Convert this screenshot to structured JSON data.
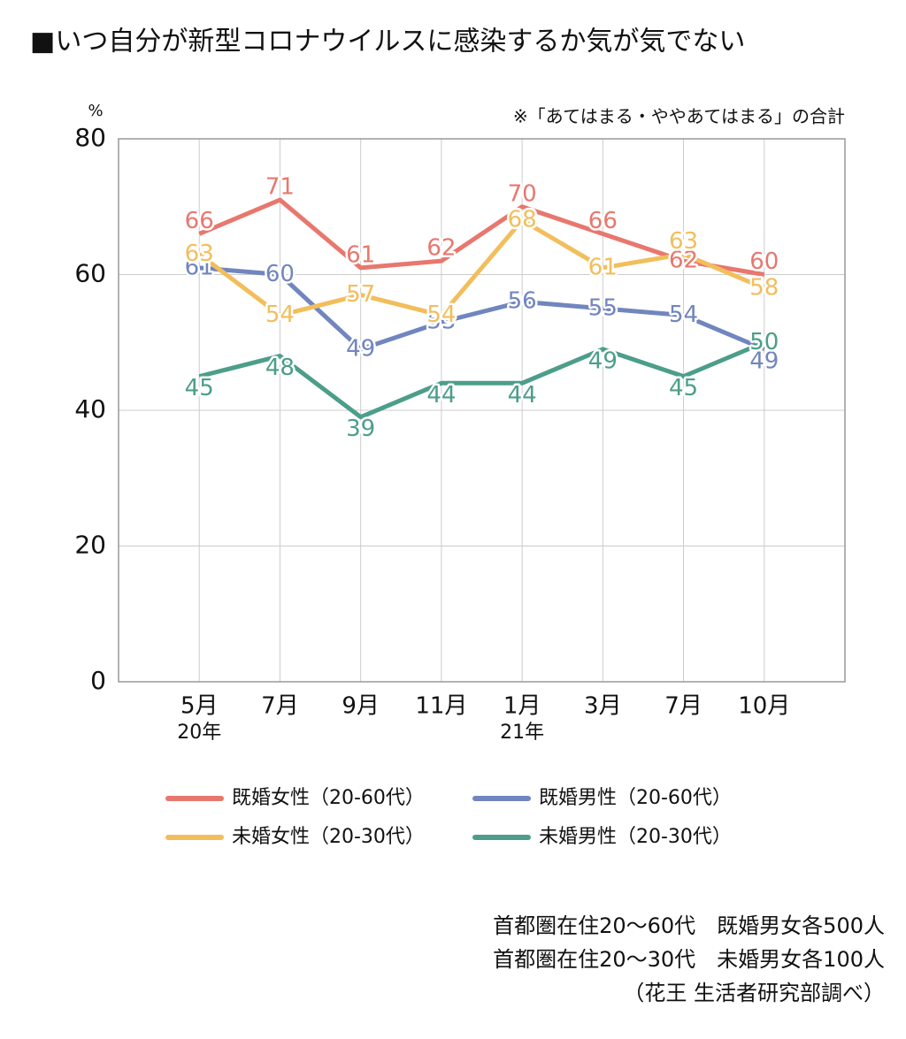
{
  "chart_data": {
    "type": "line",
    "title": "■いつ自分が新型コロナウイルスに感染するか気が気でない",
    "y_unit": "%",
    "note": "※「あてはまる・ややあてはまる」の合計",
    "categories": [
      "5月",
      "7月",
      "9月",
      "11月",
      "1月",
      "3月",
      "7月",
      "10月"
    ],
    "x_sublabels": [
      "20年",
      null,
      null,
      null,
      "21年",
      null,
      null,
      null
    ],
    "series": [
      {
        "name": "既婚女性（20-60代）",
        "color": "#e8776e",
        "values": [
          66,
          71,
          61,
          62,
          70,
          66,
          62,
          60
        ]
      },
      {
        "name": "既婚男性（20-60代）",
        "color": "#7186bf",
        "values": [
          61,
          60,
          49,
          53,
          56,
          55,
          54,
          49
        ]
      },
      {
        "name": "未婚女性（20-30代）",
        "color": "#f2be5c",
        "values": [
          63,
          54,
          57,
          54,
          68,
          61,
          63,
          58
        ]
      },
      {
        "name": "未婚男性（20-30代）",
        "color": "#4c9e8a",
        "values": [
          45,
          48,
          39,
          44,
          44,
          49,
          45,
          50
        ]
      }
    ],
    "ylim": [
      0,
      80
    ],
    "yticks": [
      0,
      20,
      40,
      60,
      80
    ],
    "grid": true,
    "footnotes": [
      "首都圏在住20〜60代　既婚男女各500人",
      "首都圏在住20〜30代　未婚男女各100人",
      "（花王 生活者研究部調べ）"
    ]
  }
}
